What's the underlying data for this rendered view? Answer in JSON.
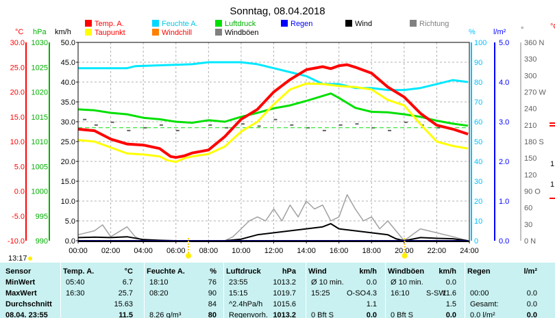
{
  "title": "Sonntag, 08.04.2018",
  "legend": [
    {
      "label": "Temp. A.",
      "color": "#ff0000"
    },
    {
      "label": "Feuchte A.",
      "color": "#00d8ff"
    },
    {
      "label": "Luftdruck",
      "color": "#00e000"
    },
    {
      "label": "Regen",
      "color": "#0000ff"
    },
    {
      "label": "Wind",
      "color": "#000000"
    },
    {
      "label": "Richtung",
      "color": "#808080"
    },
    {
      "label": "Taupunkt",
      "color": "#ffff00"
    },
    {
      "label": "Windchill",
      "color": "#ff8000"
    },
    {
      "label": "Windböen",
      "color": "#808080"
    }
  ],
  "axis_units": {
    "temp": "°C",
    "hpa": "hPa",
    "kmh": "km/h",
    "pct": "%",
    "lm2": "l/m²",
    "deg": "°",
    "right_cut": "°C"
  },
  "axis_ticks": {
    "temp": [
      "-10.0",
      "-5.0",
      "0.0",
      "5.0",
      "10.0",
      "15.0",
      "20.0",
      "25.0",
      "30.0"
    ],
    "hpa": [
      "990",
      "995",
      "1000",
      "1005",
      "1010",
      "1015",
      "1020",
      "1025",
      "1030"
    ],
    "kmh": [
      "0.0",
      "5.0",
      "10.0",
      "15.0",
      "20.0",
      "25.0",
      "30.0",
      "35.0",
      "40.0",
      "45.0",
      "50.0"
    ],
    "pct": [
      "0",
      "10",
      "20",
      "30",
      "40",
      "50",
      "60",
      "70",
      "80",
      "90",
      "100"
    ],
    "lm2": [
      "0.0",
      "1.0",
      "2.0",
      "3.0",
      "4.0",
      "5.0"
    ],
    "deg": [
      "0  N",
      "30",
      "60",
      "90  O",
      "120",
      "150",
      "180 S",
      "210",
      "240",
      "270 W",
      "300",
      "330",
      "360 N"
    ]
  },
  "x_ticks": [
    "00:00",
    "02:00",
    "04:00",
    "06:00",
    "08:00",
    "10:00",
    "12:00",
    "14:00",
    "16:00",
    "18:00",
    "20:00",
    "22:00",
    "24:00"
  ],
  "sun": {
    "rise": "06:46",
    "set": "20:02"
  },
  "updated": "13:17",
  "colors": {
    "temp": "#ff0000",
    "dew": "#ffff00",
    "hum": "#00e8ff",
    "press": "#00e000",
    "gust": "#a0a0a0",
    "wind": "#000000",
    "rain": "#0000ff",
    "dir": "#606060",
    "grid": "#b0b0b0",
    "frame": "#000000",
    "table_bg": "#c9f1f1",
    "axis_temp": "#ff0000",
    "axis_hpa": "#00b000",
    "axis_pct": "#00c0ff",
    "axis_lm2": "#0000ff"
  },
  "chart_data": {
    "type": "line",
    "title": "Sonntag, 08.04.2018",
    "x_unit": "hours",
    "xlim": [
      0,
      24
    ],
    "series": [
      {
        "name": "Temp. A.",
        "unit": "°C",
        "axis": "temp",
        "ylim": [
          -10,
          30
        ],
        "points": [
          [
            0,
            12.5
          ],
          [
            1,
            12.2
          ],
          [
            2,
            10.5
          ],
          [
            3,
            9.5
          ],
          [
            4,
            9.3
          ],
          [
            5,
            8.6
          ],
          [
            5.67,
            7.0
          ],
          [
            6,
            6.8
          ],
          [
            6.5,
            7.1
          ],
          [
            7,
            7.7
          ],
          [
            8,
            8.3
          ],
          [
            9,
            11.0
          ],
          [
            10,
            14.5
          ],
          [
            11,
            16.5
          ],
          [
            12,
            20.0
          ],
          [
            13,
            22.5
          ],
          [
            14,
            24.5
          ],
          [
            15,
            25.1
          ],
          [
            15.5,
            24.7
          ],
          [
            16,
            25.3
          ],
          [
            16.5,
            25.5
          ],
          [
            17,
            25.0
          ],
          [
            18,
            23.8
          ],
          [
            19,
            21.0
          ],
          [
            20,
            19.0
          ],
          [
            21,
            15.7
          ],
          [
            22,
            13.3
          ],
          [
            23,
            12.5
          ],
          [
            23.92,
            11.5
          ]
        ]
      },
      {
        "name": "Taupunkt",
        "unit": "°C",
        "axis": "temp",
        "ylim": [
          -10,
          30
        ],
        "points": [
          [
            0,
            10.3
          ],
          [
            1,
            10.0
          ],
          [
            2,
            8.8
          ],
          [
            3,
            7.6
          ],
          [
            4,
            7.4
          ],
          [
            5,
            7.0
          ],
          [
            5.5,
            6.2
          ],
          [
            6,
            5.9
          ],
          [
            6.5,
            6.6
          ],
          [
            7,
            7.0
          ],
          [
            8,
            7.5
          ],
          [
            9,
            9.0
          ],
          [
            10,
            12.0
          ],
          [
            11,
            14.0
          ],
          [
            12,
            17.5
          ],
          [
            13,
            20.5
          ],
          [
            14,
            21.7
          ],
          [
            15,
            21.6
          ],
          [
            16,
            21.2
          ],
          [
            17,
            21.0
          ],
          [
            18,
            20.5
          ],
          [
            19,
            18.4
          ],
          [
            20,
            17.3
          ],
          [
            21,
            13.5
          ],
          [
            22,
            10.0
          ],
          [
            23,
            9.1
          ],
          [
            23.92,
            8.6
          ]
        ]
      },
      {
        "name": "Feuchte A.",
        "unit": "%",
        "axis": "pct",
        "ylim": [
          0,
          100
        ],
        "points": [
          [
            0,
            87
          ],
          [
            3,
            87
          ],
          [
            3.5,
            88
          ],
          [
            7,
            89
          ],
          [
            8,
            90
          ],
          [
            10,
            90
          ],
          [
            11,
            89
          ],
          [
            12,
            87
          ],
          [
            13,
            85
          ],
          [
            14,
            83
          ],
          [
            15,
            79
          ],
          [
            16,
            79
          ],
          [
            17,
            77
          ],
          [
            18,
            77
          ],
          [
            19,
            76
          ],
          [
            20,
            76
          ],
          [
            21,
            77
          ],
          [
            22,
            79
          ],
          [
            23,
            81
          ],
          [
            23.92,
            80
          ]
        ]
      },
      {
        "name": "Luftdruck",
        "unit": "hPa",
        "axis": "hpa",
        "ylim": [
          990,
          1030
        ],
        "points": [
          [
            0,
            1016.5
          ],
          [
            1,
            1016.3
          ],
          [
            2,
            1015.8
          ],
          [
            3,
            1015.5
          ],
          [
            4,
            1014.8
          ],
          [
            5,
            1014.5
          ],
          [
            6,
            1014.0
          ],
          [
            7,
            1013.8
          ],
          [
            8,
            1014.3
          ],
          [
            9,
            1014.0
          ],
          [
            10,
            1015.0
          ],
          [
            11,
            1015.8
          ],
          [
            12,
            1016.7
          ],
          [
            13,
            1017.3
          ],
          [
            14,
            1018.2
          ],
          [
            15,
            1019.2
          ],
          [
            15.5,
            1019.7
          ],
          [
            16,
            1018.8
          ],
          [
            17,
            1016.8
          ],
          [
            18,
            1016.0
          ],
          [
            19,
            1015.9
          ],
          [
            20,
            1015.5
          ],
          [
            21,
            1015.0
          ],
          [
            22,
            1014.2
          ],
          [
            23,
            1013.6
          ],
          [
            23.92,
            1013.2
          ]
        ]
      },
      {
        "name": "Windböen",
        "unit": "km/h",
        "axis": "kmh",
        "ylim": [
          0,
          50
        ],
        "points": [
          [
            0,
            1.5
          ],
          [
            1,
            2.5
          ],
          [
            1.5,
            4
          ],
          [
            2,
            1
          ],
          [
            3,
            3.5
          ],
          [
            3.5,
            1
          ],
          [
            4,
            0
          ],
          [
            5,
            0
          ],
          [
            6,
            0
          ],
          [
            7,
            0
          ],
          [
            8,
            0
          ],
          [
            9,
            0
          ],
          [
            9.5,
            1
          ],
          [
            10,
            3
          ],
          [
            10.5,
            5
          ],
          [
            11,
            6
          ],
          [
            11.5,
            5
          ],
          [
            12,
            8
          ],
          [
            12.5,
            5
          ],
          [
            13,
            9
          ],
          [
            13.5,
            6
          ],
          [
            14,
            10
          ],
          [
            14.5,
            8
          ],
          [
            15,
            9
          ],
          [
            15.5,
            5
          ],
          [
            16,
            6
          ],
          [
            16.5,
            11.6
          ],
          [
            17,
            8
          ],
          [
            17.5,
            5
          ],
          [
            18,
            6
          ],
          [
            18.5,
            3
          ],
          [
            19,
            5
          ],
          [
            20,
            0
          ],
          [
            21,
            3
          ],
          [
            22,
            2
          ],
          [
            23,
            1
          ],
          [
            23.92,
            0
          ]
        ]
      },
      {
        "name": "Wind",
        "unit": "km/h",
        "axis": "kmh",
        "ylim": [
          0,
          50
        ],
        "points": [
          [
            0,
            0.8
          ],
          [
            1,
            0.9
          ],
          [
            2,
            0.8
          ],
          [
            3,
            1.0
          ],
          [
            4,
            0.3
          ],
          [
            5,
            0.1
          ],
          [
            6,
            0
          ],
          [
            7,
            0
          ],
          [
            8,
            0
          ],
          [
            9,
            0
          ],
          [
            10,
            0.4
          ],
          [
            11,
            1.5
          ],
          [
            12,
            2.0
          ],
          [
            13,
            2.5
          ],
          [
            14,
            3.0
          ],
          [
            15,
            3.5
          ],
          [
            15.5,
            4.3
          ],
          [
            16,
            3.0
          ],
          [
            17,
            2.5
          ],
          [
            18,
            2.0
          ],
          [
            19,
            1.5
          ],
          [
            19.5,
            0.5
          ],
          [
            20,
            0
          ],
          [
            21,
            0.8
          ],
          [
            22,
            0.6
          ],
          [
            23,
            0.5
          ],
          [
            23.92,
            0
          ]
        ]
      },
      {
        "name": "Regen",
        "unit": "l/m²",
        "axis": "lm2",
        "ylim": [
          0,
          5
        ],
        "points": [
          [
            0,
            0
          ],
          [
            23.92,
            0
          ]
        ]
      }
    ],
    "reference_lines": [
      {
        "axis": "kmh",
        "value": 28.5,
        "color": "#00e000"
      }
    ]
  },
  "table": {
    "headers": [
      {
        "label": "Sensor",
        "unit": ""
      },
      {
        "label": "Temp. A.",
        "unit": "°C"
      },
      {
        "label": "Feuchte A.",
        "unit": "%"
      },
      {
        "label": "Luftdruck",
        "unit": "hPa"
      },
      {
        "label": "Wind",
        "unit": "km/h"
      },
      {
        "label": "Windböen",
        "unit": "km/h"
      },
      {
        "label": "Regen",
        "unit": "l/m²"
      }
    ],
    "rows": [
      {
        "name": "MinWert",
        "cells": [
          [
            "05:40",
            "6.7"
          ],
          [
            "18:10",
            "76"
          ],
          [
            "23:55",
            "1013.2"
          ],
          [
            "Ø 10 min.",
            "",
            "0.0"
          ],
          [
            "Ø 10 min.",
            "",
            "0.0"
          ],
          [
            "",
            ""
          ]
        ]
      },
      {
        "name": "MaxWert",
        "cells": [
          [
            "16:30",
            "25.7"
          ],
          [
            "08:20",
            "90"
          ],
          [
            "15:15",
            "1019.7"
          ],
          [
            "15:25",
            "O-SO",
            "4.3"
          ],
          [
            "16:10",
            "S-SW",
            "11.6"
          ],
          [
            "00:00",
            "0.0"
          ]
        ]
      },
      {
        "name": "Durchschnitt",
        "cells": [
          [
            "",
            "15.63"
          ],
          [
            "",
            "84"
          ],
          [
            "^2.4hPa/h",
            "1015.6"
          ],
          [
            "",
            "",
            "1.1"
          ],
          [
            "",
            "",
            "1.5"
          ],
          [
            "Gesamt:",
            "0.0"
          ]
        ]
      },
      {
        "name": "08.04. 23:55",
        "cells": [
          [
            "",
            "11.5"
          ],
          [
            "8.26 g/m³",
            "80"
          ],
          [
            "Regenvorh.",
            "1013.2"
          ],
          [
            "0 Bft S",
            "",
            "0.0"
          ],
          [
            "0 Bft S",
            "",
            "0.0"
          ],
          [
            "0.0 l/m²",
            "0.0"
          ]
        ]
      }
    ]
  }
}
